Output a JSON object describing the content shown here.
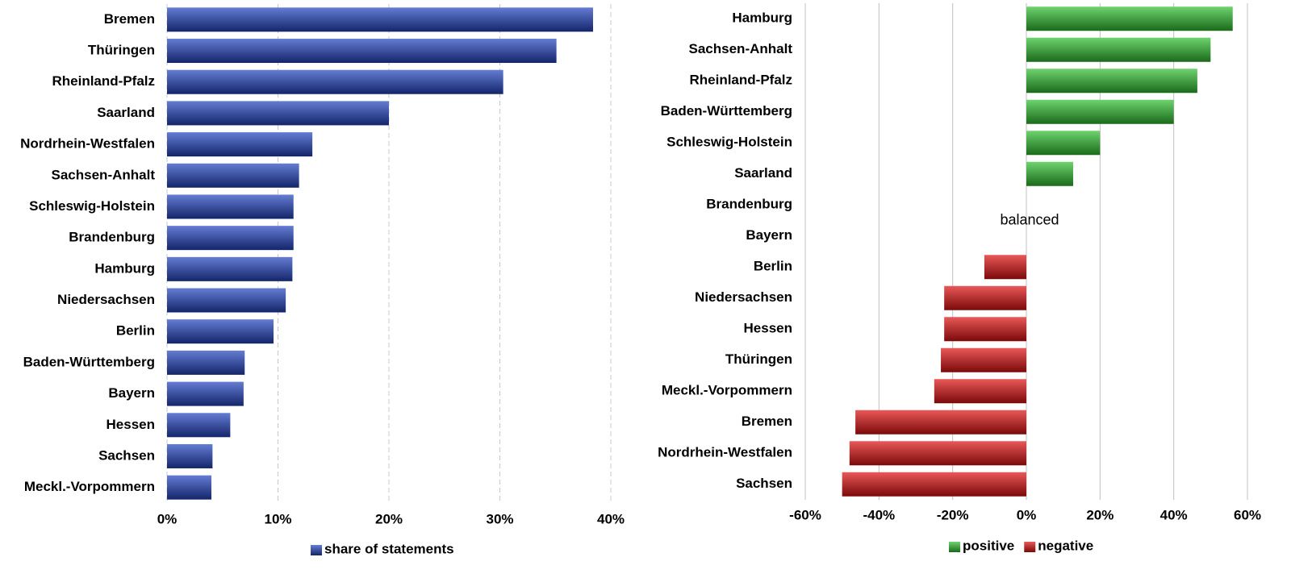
{
  "chart_data": [
    {
      "type": "bar",
      "orientation": "horizontal",
      "categories": [
        "Bremen",
        "Thüringen",
        "Rheinland-Pfalz",
        "Saarland",
        "Nordrhein-Westfalen",
        "Sachsen-Anhalt",
        "Schleswig-Holstein",
        "Brandenburg",
        "Hamburg",
        "Niedersachsen",
        "Berlin",
        "Baden-Württemberg",
        "Bayern",
        "Hessen",
        "Sachsen",
        "Meckl.-Vorpommern"
      ],
      "series": [
        {
          "name": "share of statements",
          "color": "#2244c0",
          "values": [
            38.4,
            35.1,
            30.3,
            20,
            13.1,
            11.9,
            11.4,
            11.4,
            11.3,
            10.7,
            9.6,
            7.0,
            6.9,
            5.7,
            4.1,
            4.0
          ]
        }
      ],
      "xlim": [
        0,
        40
      ],
      "xticks": [
        {
          "value": 0,
          "label": "0%"
        },
        {
          "value": 10,
          "label": "10%"
        },
        {
          "value": 20,
          "label": "20%"
        },
        {
          "value": 30,
          "label": "30%"
        },
        {
          "value": 40,
          "label": "40%"
        }
      ],
      "grid": "dashed"
    },
    {
      "type": "bar",
      "orientation": "horizontal",
      "categories": [
        "Hamburg",
        "Sachsen-Anhalt",
        "Rheinland-Pfalz",
        "Baden-Württemberg",
        "Schleswig-Holstein",
        "Saarland",
        "Brandenburg",
        "Bayern",
        "Berlin",
        "Niedersachsen",
        "Hessen",
        "Thüringen",
        "Meckl.-Vorpommern",
        "Bremen",
        "Nordrhein-Westfalen",
        "Sachsen"
      ],
      "series": [
        {
          "name": "positive",
          "color": "#30c030",
          "values": [
            56,
            50,
            46.4,
            40,
            20,
            12.7,
            0,
            0,
            null,
            null,
            null,
            null,
            null,
            null,
            null,
            null
          ]
        },
        {
          "name": "negative",
          "color": "#e01010",
          "values": [
            null,
            null,
            null,
            null,
            null,
            null,
            null,
            null,
            -11.4,
            -22.3,
            -22.3,
            -23.2,
            -25,
            -46.4,
            -48,
            -50
          ]
        }
      ],
      "xlim": [
        -60,
        60
      ],
      "xticks": [
        {
          "value": -60,
          "label": "-60%"
        },
        {
          "value": -40,
          "label": "-40%"
        },
        {
          "value": -20,
          "label": "-20%"
        },
        {
          "value": 0,
          "label": "0%"
        },
        {
          "value": 20,
          "label": "20%"
        },
        {
          "value": 40,
          "label": "40%"
        },
        {
          "value": 60,
          "label": "60%"
        }
      ],
      "grid": "solid",
      "annotation": "balanced"
    }
  ]
}
